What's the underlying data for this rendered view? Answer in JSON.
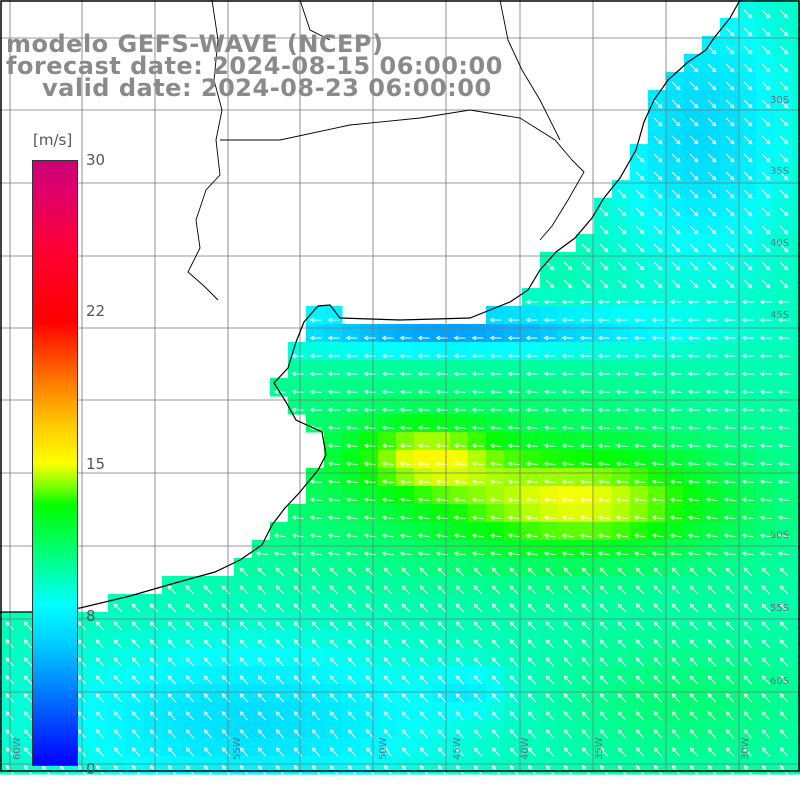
{
  "title": {
    "model": "modelo GEFS-WAVE (NCEP)",
    "forecast": "forecast date: 2024-08-15 06:00:00",
    "valid": "valid date: 2024-08-23 06:00:00"
  },
  "colorbar": {
    "unit": "[m/s]",
    "min": 0,
    "max": 30,
    "ticks": [
      "30",
      "22",
      "15",
      "8",
      "0"
    ],
    "colors": [
      "#0000ff",
      "#0066ff",
      "#00ccff",
      "#00ffff",
      "#00ff99",
      "#00ff00",
      "#77ff00",
      "#ffff00",
      "#ffcc00",
      "#ff8000",
      "#ff0000",
      "#cc0077"
    ]
  },
  "grid": {
    "lat_labels": [
      "30S",
      "35S",
      "40S",
      "45S",
      "50S",
      "55S",
      "60S"
    ],
    "lon_labels": [
      "60W",
      "55W",
      "50W",
      "45W",
      "40W",
      "35W",
      "30W"
    ]
  }
}
